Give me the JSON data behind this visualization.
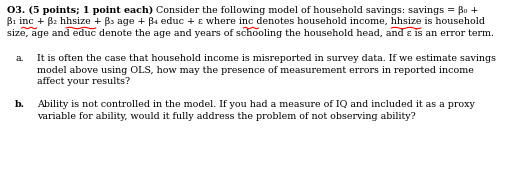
{
  "background_color": "#ffffff",
  "fig_width": 5.26,
  "fig_height": 1.69,
  "dpi": 100,
  "text_color": "#000000",
  "font_size": 6.8,
  "font_family": "DejaVu Serif",
  "line1_bold": "O3. (5 points; 1 point each)",
  "line1_normal": " Consider the following model of household savings: savings = β₀ +",
  "line2": "β₁ inc + β₂ hhsize + β₃ age + β₄ educ + ε where inc denotes household income, hhsize is household",
  "line3": "size, age and educ denote the age and years of schooling the household head, and ε is an error term.",
  "a_label": "a.",
  "a_line1": "It is often the case that household income is misreported in survey data. If we estimate savings",
  "a_line2": "model above using OLS, how may the presence of measurement errors in reported income",
  "a_line3": "affect your results?",
  "b_label": "b.",
  "b_line1": "Ability is not controlled in the model. If you had a measure of IQ and included it as a proxy",
  "b_line2": "variable for ability, would it fully address the problem of not observing ability?"
}
